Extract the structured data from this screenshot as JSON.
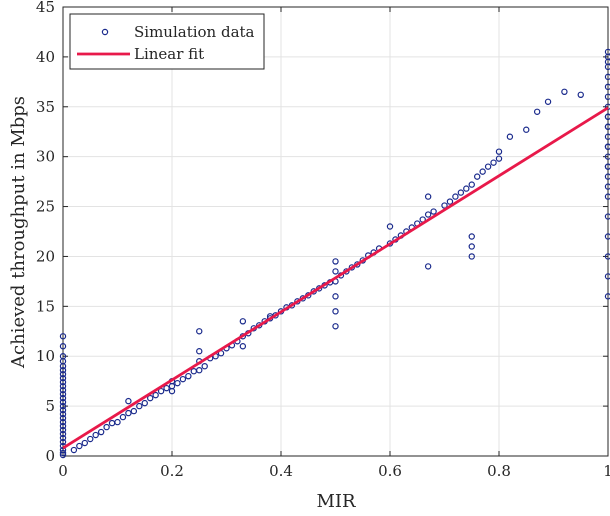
{
  "chart_data": {
    "type": "scatter",
    "xlabel": "MIR",
    "ylabel": "Achieved throughput in Mbps",
    "xlim": [
      0,
      1
    ],
    "ylim": [
      0,
      45
    ],
    "xticks": [
      0,
      0.2,
      0.4,
      0.6,
      0.8,
      1
    ],
    "xtick_labels": [
      "0",
      "0.2",
      "0.4",
      "0.6",
      "0.8",
      "1"
    ],
    "yticks": [
      0,
      5,
      10,
      15,
      20,
      25,
      30,
      35,
      40,
      45
    ],
    "ytick_labels": [
      "0",
      "5",
      "10",
      "15",
      "20",
      "25",
      "30",
      "35",
      "40",
      "45"
    ],
    "grid": true,
    "legend_position": "top-left",
    "colors": {
      "scatter": "#1a2a8c",
      "fit": "#e8194a",
      "grid": "#e3e3e3",
      "axis": "#262626"
    },
    "series": [
      {
        "name": "Simulation data",
        "kind": "scatter",
        "x": [
          0,
          0,
          0,
          0,
          0,
          0,
          0,
          0,
          0,
          0,
          0,
          0,
          0,
          0,
          0,
          0,
          0,
          0,
          0,
          0,
          0,
          0,
          0,
          0,
          0,
          0,
          0,
          0,
          0.02,
          0.03,
          0.04,
          0.05,
          0.06,
          0.07,
          0.08,
          0.09,
          0.1,
          0.11,
          0.12,
          0.12,
          0.13,
          0.14,
          0.15,
          0.16,
          0.17,
          0.18,
          0.19,
          0.2,
          0.2,
          0.2,
          0.21,
          0.22,
          0.23,
          0.24,
          0.25,
          0.25,
          0.25,
          0.25,
          0.26,
          0.27,
          0.28,
          0.29,
          0.3,
          0.31,
          0.32,
          0.33,
          0.33,
          0.33,
          0.34,
          0.35,
          0.36,
          0.37,
          0.38,
          0.38,
          0.39,
          0.4,
          0.41,
          0.42,
          0.43,
          0.44,
          0.45,
          0.46,
          0.47,
          0.48,
          0.49,
          0.5,
          0.5,
          0.5,
          0.5,
          0.5,
          0.5,
          0.51,
          0.52,
          0.53,
          0.54,
          0.55,
          0.56,
          0.57,
          0.58,
          0.6,
          0.6,
          0.61,
          0.62,
          0.63,
          0.64,
          0.65,
          0.66,
          0.67,
          0.67,
          0.67,
          0.68,
          0.7,
          0.71,
          0.72,
          0.73,
          0.74,
          0.75,
          0.75,
          0.75,
          0.75,
          0.76,
          0.77,
          0.78,
          0.79,
          0.8,
          0.8,
          0.82,
          0.85,
          0.87,
          0.89,
          0.92,
          0.95,
          1,
          1,
          1,
          1,
          1,
          1,
          1,
          1,
          1,
          1,
          1,
          1,
          1,
          1,
          1,
          1,
          1,
          1,
          1,
          1,
          1,
          1,
          1,
          1,
          1,
          1
        ],
        "y": [
          0.1,
          0.3,
          0.6,
          1,
          1.4,
          1.8,
          2.2,
          2.6,
          3,
          3.4,
          3.8,
          4.2,
          4.6,
          5,
          5.4,
          5.8,
          6.2,
          6.6,
          7,
          7.4,
          7.8,
          8.2,
          8.6,
          9,
          9.5,
          10,
          11,
          12,
          0.6,
          1,
          1.3,
          1.7,
          2.1,
          2.4,
          2.9,
          3.3,
          3.4,
          3.9,
          4.3,
          5.5,
          4.5,
          5,
          5.3,
          5.8,
          6.1,
          6.5,
          6.8,
          7,
          6.5,
          7.5,
          7.3,
          7.7,
          8,
          8.5,
          8.6,
          9.5,
          10.5,
          12.5,
          9,
          9.8,
          10,
          10.3,
          10.8,
          11.1,
          11.5,
          12,
          11,
          13.5,
          12.3,
          12.8,
          13.1,
          13.5,
          13.8,
          14,
          14.1,
          14.5,
          14.9,
          15.1,
          15.5,
          15.8,
          16.1,
          16.5,
          16.8,
          17.1,
          17.4,
          13,
          14.5,
          16,
          17.5,
          18.5,
          19.5,
          18.1,
          18.5,
          18.9,
          19.2,
          19.6,
          20.1,
          20.4,
          20.8,
          21.3,
          23,
          21.7,
          22.1,
          22.5,
          22.9,
          23.3,
          23.7,
          24.2,
          19,
          26,
          24.5,
          25.1,
          25.5,
          26,
          26.4,
          26.8,
          27.2,
          20,
          21,
          22,
          28,
          28.5,
          29,
          29.4,
          29.8,
          30.5,
          32,
          32.7,
          34.5,
          35.5,
          36.5,
          36.2,
          16,
          18,
          20,
          22,
          24,
          26,
          27,
          28,
          29,
          30,
          31,
          32,
          33,
          34,
          35,
          36,
          37,
          38,
          39,
          39.5,
          40,
          40.5,
          34,
          33,
          31,
          29
        ]
      },
      {
        "name": "Linear fit",
        "kind": "line",
        "x": [
          0,
          1
        ],
        "y": [
          0.8,
          34.9
        ]
      }
    ]
  }
}
